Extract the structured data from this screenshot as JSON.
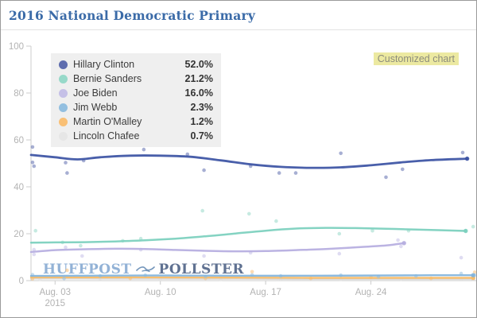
{
  "header": {
    "title": "2016 National Democratic Primary"
  },
  "badge": {
    "label": "Customized chart",
    "bg": "#ece9a1",
    "fg": "#8c8c7c"
  },
  "watermark": {
    "huffpost": "HUFFPOST",
    "pollster": "POLLSTER",
    "bird_icon": "pollster-bird-icon"
  },
  "chart_data": {
    "type": "line",
    "title": "2016 National Democratic Primary",
    "x_unit": "date, August 2015",
    "xlim": [
      1.4,
      31
    ],
    "ylim": [
      0,
      100
    ],
    "grid": false,
    "legend_position": "top-left",
    "y_ticks": [
      0,
      20,
      40,
      60,
      80,
      100
    ],
    "x_ticks": [
      {
        "day": 3,
        "label": "Aug. 03",
        "sublabel": "2015"
      },
      {
        "day": 10,
        "label": "Aug. 10",
        "sublabel": ""
      },
      {
        "day": 17,
        "label": "Aug. 17",
        "sublabel": ""
      },
      {
        "day": 24,
        "label": "Aug. 24",
        "sublabel": ""
      }
    ],
    "axis_color": "#cccccc",
    "tick_text_color": "#b3b3b3",
    "series": [
      {
        "name": "Hillary Clinton",
        "value_label": "52.0%",
        "color": "#3a51a3",
        "swatch": "#5e6dae",
        "line_width": 2.8,
        "trend": [
          [
            1.4,
            53.6
          ],
          [
            3,
            52.6
          ],
          [
            4.5,
            51.7
          ],
          [
            6,
            52.6
          ],
          [
            8,
            53.3
          ],
          [
            10,
            53.3
          ],
          [
            12,
            52.8
          ],
          [
            14,
            51.3
          ],
          [
            16,
            49.6
          ],
          [
            18,
            48.5
          ],
          [
            20,
            48.1
          ],
          [
            22,
            48.3
          ],
          [
            24,
            49.2
          ],
          [
            26,
            50.4
          ],
          [
            28,
            51.4
          ],
          [
            30.4,
            52.0
          ]
        ],
        "scatter": [
          [
            1.5,
            57
          ],
          [
            1.5,
            50.4
          ],
          [
            1.6,
            48.8
          ],
          [
            3.7,
            50.3
          ],
          [
            3.8,
            45.9
          ],
          [
            4.9,
            51.2
          ],
          [
            8.9,
            55.9
          ],
          [
            11.8,
            53.9
          ],
          [
            12.9,
            47.1
          ],
          [
            16,
            48.8
          ],
          [
            17.9,
            45.9
          ],
          [
            19,
            45.9
          ],
          [
            22,
            54.3
          ],
          [
            25,
            44.1
          ],
          [
            26.1,
            47.5
          ],
          [
            30.1,
            54.6
          ]
        ]
      },
      {
        "name": "Bernie Sanders",
        "value_label": "21.2%",
        "color": "#79cfbd",
        "swatch": "#97d9c9",
        "line_width": 2.5,
        "trend": [
          [
            1.4,
            16.2
          ],
          [
            3,
            16.3
          ],
          [
            5,
            16.4
          ],
          [
            7,
            16.7
          ],
          [
            9,
            17.2
          ],
          [
            11,
            17.9
          ],
          [
            13,
            18.9
          ],
          [
            15,
            20.1
          ],
          [
            17,
            21.3
          ],
          [
            19,
            22.2
          ],
          [
            21,
            22.5
          ],
          [
            23,
            22.4
          ],
          [
            25,
            22.1
          ],
          [
            27,
            21.8
          ],
          [
            30.3,
            21.2
          ]
        ],
        "scatter": [
          [
            1.7,
            21.3
          ],
          [
            3.5,
            16.3
          ],
          [
            4.7,
            14.9
          ],
          [
            7.5,
            17
          ],
          [
            8.7,
            17.9
          ],
          [
            12.8,
            29.8
          ],
          [
            15.9,
            28.5
          ],
          [
            17.7,
            25.4
          ],
          [
            21.9,
            20
          ],
          [
            24.1,
            21.3
          ],
          [
            26.5,
            21.3
          ],
          [
            30.8,
            23
          ]
        ]
      },
      {
        "name": "Joe Biden",
        "value_label": "16.0%",
        "color": "#b5addf",
        "swatch": "#c5c0e7",
        "line_width": 2.5,
        "trend": [
          [
            1.4,
            12.2
          ],
          [
            3,
            13.0
          ],
          [
            5,
            13.4
          ],
          [
            7,
            13.6
          ],
          [
            9,
            13.5
          ],
          [
            11,
            13.1
          ],
          [
            13,
            12.7
          ],
          [
            15,
            12.5
          ],
          [
            17,
            12.6
          ],
          [
            19,
            13.0
          ],
          [
            21,
            13.5
          ],
          [
            23,
            14.2
          ],
          [
            25,
            15.0
          ],
          [
            26.2,
            16.0
          ]
        ],
        "scatter": [
          [
            1.6,
            13.2
          ],
          [
            1.6,
            11.2
          ],
          [
            3.7,
            14.2
          ],
          [
            4.8,
            10.5
          ],
          [
            8.7,
            13.2
          ],
          [
            12.9,
            10.5
          ],
          [
            16,
            11.9
          ],
          [
            21.9,
            11.5
          ],
          [
            25.8,
            17.3
          ],
          [
            26,
            14.6
          ],
          [
            30,
            9.8
          ]
        ]
      },
      {
        "name": "Jim Webb",
        "value_label": "2.3%",
        "color": "#82b4dc",
        "swatch": "#93bfe0",
        "line_width": 2.4,
        "trend": [
          [
            1.4,
            2.0
          ],
          [
            5,
            2.1
          ],
          [
            10,
            2.2
          ],
          [
            15,
            2.1
          ],
          [
            20,
            2.1
          ],
          [
            25,
            2.2
          ],
          [
            28,
            2.3
          ],
          [
            30.8,
            2.3
          ]
        ],
        "scatter": [
          [
            1.5,
            2.5
          ],
          [
            3.6,
            0.9
          ],
          [
            6,
            2
          ],
          [
            9,
            2.3
          ],
          [
            13,
            1.8
          ],
          [
            16.1,
            2.4
          ],
          [
            18,
            2
          ],
          [
            22,
            2.3
          ],
          [
            24.5,
            1.7
          ],
          [
            27,
            2
          ],
          [
            30,
            3
          ],
          [
            30.9,
            2.3
          ]
        ]
      },
      {
        "name": "Martin O'Malley",
        "value_label": "1.2%",
        "color": "#f9ba63",
        "swatch": "#f9c076",
        "line_width": 2.4,
        "trend": [
          [
            1.4,
            1.4
          ],
          [
            5,
            1.4
          ],
          [
            10,
            1.4
          ],
          [
            15,
            1.3
          ],
          [
            20,
            1.2
          ],
          [
            25,
            1.2
          ],
          [
            28,
            1.2
          ],
          [
            30.8,
            1.2
          ]
        ],
        "scatter": [
          [
            1.5,
            0.8
          ],
          [
            3.8,
            4.4
          ],
          [
            8,
            1
          ],
          [
            13,
            1
          ],
          [
            16.1,
            3.8
          ],
          [
            20,
            1
          ],
          [
            24,
            1.4
          ],
          [
            28,
            1
          ],
          [
            30.9,
            3.6
          ]
        ]
      },
      {
        "name": "Lincoln Chafee",
        "value_label": "0.7%",
        "color": "#d8d8d8",
        "swatch": "#e6e6e6",
        "line_width": 2.4,
        "trend": [
          [
            1.4,
            0.9
          ],
          [
            5,
            0.9
          ],
          [
            10,
            0.8
          ],
          [
            15,
            0.8
          ],
          [
            20,
            0.7
          ],
          [
            25,
            0.7
          ],
          [
            30.8,
            0.7
          ]
        ],
        "scatter": [
          [
            2,
            0.5
          ],
          [
            6,
            0.9
          ],
          [
            10,
            0.6
          ],
          [
            14,
            0.5
          ],
          [
            18,
            0.7
          ],
          [
            22,
            0.5
          ],
          [
            26,
            0.6
          ],
          [
            30,
            0.8
          ]
        ]
      }
    ]
  }
}
